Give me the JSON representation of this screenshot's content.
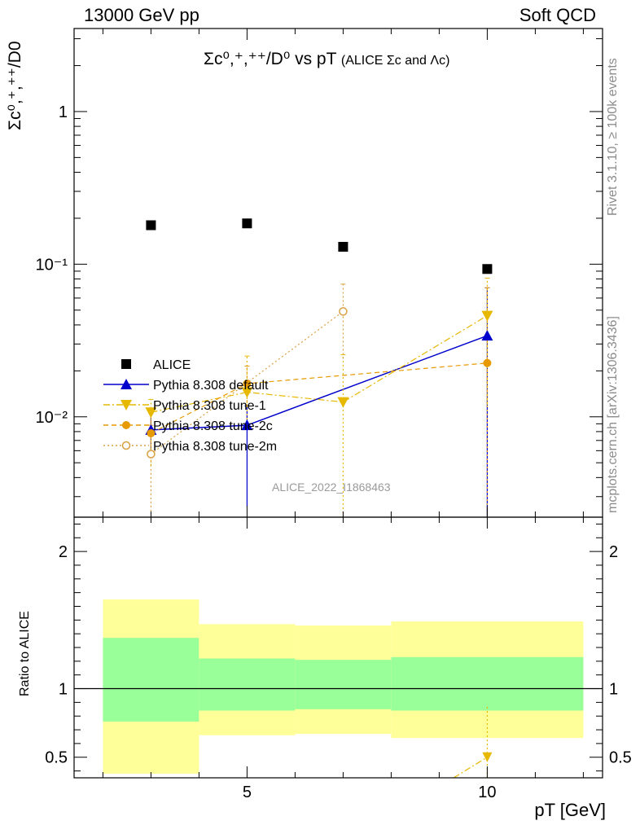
{
  "header": {
    "left": "13000 GeV pp",
    "right": "Soft QCD"
  },
  "title": {
    "main": "Σc⁰,⁺,⁺⁺/D⁰ vs pT",
    "sub": "(ALICE Σc and Λc)"
  },
  "side_text": {
    "rivet": "Rivet 3.1.10, ≥ 100k events",
    "mcplots": "mcplots.cern.ch [arXiv:1306.3436]"
  },
  "watermark": "ALICE_2022_I1868463",
  "colors": {
    "alice": "#000000",
    "default": "#0000cc",
    "tune1": "#e6b800",
    "tune2c": "#e69a00",
    "tune2m": "#d9a040",
    "band_inner": "#99ff99",
    "band_outer": "#ffff99"
  },
  "chart_data": [
    {
      "type": "scatter",
      "panel": "main",
      "ylabel": "Σc⁰,⁺,⁺⁺/D0",
      "yscale": "log",
      "xlim": [
        1.4,
        12.4
      ],
      "ylim": [
        0.0022,
        3.5
      ],
      "y_ticks": [
        {
          "value": 0.01,
          "label": "10⁻²"
        },
        {
          "value": 0.1,
          "label": "10⁻¹"
        },
        {
          "value": 1,
          "label": "1"
        }
      ],
      "legend_position": "middle-left",
      "series": [
        {
          "name": "ALICE",
          "style": "square",
          "color_key": "alice",
          "points": [
            {
              "x": 3,
              "y": 0.18
            },
            {
              "x": 5,
              "y": 0.185
            },
            {
              "x": 7,
              "y": 0.13
            },
            {
              "x": 10,
              "y": 0.093
            }
          ]
        },
        {
          "name": "Pythia 8.308 default",
          "style": "triangle-up",
          "line": "solid",
          "color_key": "default",
          "points": [
            {
              "x": 3,
              "y": 0.0082,
              "lo": 0.0055,
              "hi": 0.0112
            },
            {
              "x": 5,
              "y": 0.0088,
              "lo": 0.0026,
              "hi": 0.0118
            },
            {
              "x": 10,
              "y": 0.034,
              "lo": 0.001,
              "hi": 0.07
            }
          ]
        },
        {
          "name": "Pythia 8.308 tune-1",
          "style": "triangle-down",
          "line": "dashdot",
          "color_key": "tune1",
          "points": [
            {
              "x": 3,
              "y": 0.0107,
              "lo": 0.0048,
              "hi": 0.013
            },
            {
              "x": 5,
              "y": 0.0145,
              "lo": 0.0085,
              "hi": 0.025
            },
            {
              "x": 7,
              "y": 0.0125,
              "lo": 0.001,
              "hi": 0.0255
            },
            {
              "x": 10,
              "y": 0.046,
              "lo": 0.012,
              "hi": 0.081
            }
          ]
        },
        {
          "name": "Pythia 8.308 tune-2c",
          "style": "circle",
          "line": "dashed",
          "color_key": "tune2c",
          "points": [
            {
              "x": 3,
              "y": 0.0078,
              "lo": 0.0056,
              "hi": 0.0105
            },
            {
              "x": 5,
              "y": 0.0165,
              "lo": 0.0118,
              "hi": 0.0215
            },
            {
              "x": 10,
              "y": 0.0225,
              "lo": 0.001,
              "hi": 0.07
            }
          ]
        },
        {
          "name": "Pythia 8.308 tune-2m",
          "style": "circle-open",
          "line": "dotted",
          "color_key": "tune2m",
          "points": [
            {
              "x": 3,
              "y": 0.0057,
              "lo": 0.0024,
              "hi": 0.0088
            },
            {
              "x": 7,
              "y": 0.049,
              "lo": 0.024,
              "hi": 0.074
            }
          ]
        }
      ]
    },
    {
      "type": "area",
      "panel": "ratio",
      "ylabel": "Ratio to ALICE",
      "xlabel": "pT [GeV]",
      "xlim": [
        1.4,
        12.4
      ],
      "ylim": [
        0.35,
        2.25
      ],
      "x_ticks": [
        {
          "value": 5,
          "label": "5"
        },
        {
          "value": 10,
          "label": "10"
        }
      ],
      "y_ticks": [
        {
          "value": 0.5,
          "label": "0.5"
        },
        {
          "value": 1,
          "label": "1"
        },
        {
          "value": 2,
          "label": "2"
        }
      ],
      "bands": [
        {
          "x0": 2,
          "x1": 4,
          "inner": [
            0.76,
            1.37
          ],
          "outer": [
            0.38,
            1.65
          ]
        },
        {
          "x0": 4,
          "x1": 6,
          "inner": [
            0.84,
            1.22
          ],
          "outer": [
            0.66,
            1.47
          ]
        },
        {
          "x0": 6,
          "x1": 8,
          "inner": [
            0.85,
            1.21
          ],
          "outer": [
            0.67,
            1.46
          ]
        },
        {
          "x0": 8,
          "x1": 12,
          "inner": [
            0.84,
            1.23
          ],
          "outer": [
            0.64,
            1.49
          ]
        }
      ],
      "series": [
        {
          "name": "Pythia 8.308 tune-1",
          "color_key": "tune1",
          "line": "dashdot",
          "points": [
            {
              "x": 10,
              "y": 0.5,
              "lo": 0.12,
              "hi": 0.88
            }
          ],
          "trail_from": {
            "x": 9.3,
            "y": 0.3
          }
        }
      ]
    }
  ]
}
